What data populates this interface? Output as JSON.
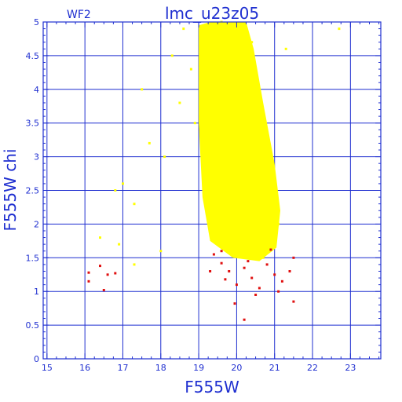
{
  "chart_data": {
    "type": "scatter",
    "title": "lmc_u23z05",
    "subtitle": "WF2",
    "xlabel": "F555W",
    "ylabel": "F555W  chi",
    "xlim": [
      14.9,
      23.8
    ],
    "ylim": [
      0,
      5
    ],
    "xticks": [
      15,
      16,
      17,
      18,
      19,
      20,
      21,
      22,
      23
    ],
    "yticks": [
      0,
      0.5,
      1,
      1.5,
      2,
      2.5,
      3,
      3.5,
      4,
      4.5,
      5
    ],
    "xtick_labels": [
      "15",
      "16",
      "17",
      "18",
      "19",
      "20",
      "21",
      "22",
      "23"
    ],
    "ytick_labels": [
      "0",
      "0.5",
      "1",
      "1.5",
      "2",
      "2.5",
      "3",
      "3.5",
      "4",
      "4.5",
      "5"
    ],
    "grid": true,
    "series": [
      {
        "color": "#ffff00",
        "points": [
          [
            19.05,
            4.8
          ],
          [
            19.3,
            4.95
          ],
          [
            19.6,
            5.0
          ],
          [
            20.1,
            4.9
          ],
          [
            20.4,
            4.7
          ],
          [
            20.0,
            4.0
          ],
          [
            20.5,
            3.8
          ],
          [
            20.8,
            3.2
          ],
          [
            19.2,
            3.5
          ],
          [
            19.4,
            3.0
          ],
          [
            19.6,
            2.5
          ],
          [
            20.9,
            2.5
          ],
          [
            21.1,
            2.0
          ],
          [
            19.5,
            2.0
          ],
          [
            20.0,
            1.6
          ],
          [
            20.7,
            1.5
          ],
          [
            18.6,
            4.9
          ],
          [
            18.8,
            4.3
          ],
          [
            18.5,
            3.8
          ],
          [
            18.9,
            3.5
          ],
          [
            17.5,
            4.0
          ],
          [
            17.7,
            3.2
          ],
          [
            18.1,
            3.0
          ],
          [
            17.0,
            2.6
          ],
          [
            17.3,
            2.3
          ],
          [
            16.8,
            2.5
          ],
          [
            16.4,
            1.8
          ],
          [
            16.9,
            1.7
          ],
          [
            18.0,
            1.6
          ],
          [
            17.3,
            1.4
          ],
          [
            22.7,
            4.9
          ],
          [
            21.3,
            4.6
          ],
          [
            18.3,
            4.5
          ],
          [
            19.9,
            4.5
          ],
          [
            20.3,
            2.9
          ]
        ]
      },
      {
        "color": "#e01010",
        "points": [
          [
            16.1,
            1.28
          ],
          [
            16.1,
            1.15
          ],
          [
            16.4,
            1.38
          ],
          [
            16.6,
            1.25
          ],
          [
            16.5,
            1.02
          ],
          [
            16.8,
            1.27
          ],
          [
            19.4,
            1.55
          ],
          [
            19.6,
            1.42
          ],
          [
            19.8,
            1.3
          ],
          [
            20.0,
            1.1
          ],
          [
            20.2,
            1.35
          ],
          [
            20.4,
            1.2
          ],
          [
            20.6,
            1.05
          ],
          [
            20.8,
            1.4
          ],
          [
            21.0,
            1.25
          ],
          [
            21.2,
            1.15
          ],
          [
            21.4,
            1.3
          ],
          [
            21.5,
            0.85
          ],
          [
            20.2,
            0.58
          ],
          [
            19.95,
            0.82
          ],
          [
            20.5,
            0.95
          ],
          [
            19.7,
            1.18
          ],
          [
            20.9,
            1.62
          ],
          [
            21.5,
            1.5
          ],
          [
            20.3,
            1.45
          ],
          [
            19.3,
            1.3
          ],
          [
            19.6,
            1.6
          ],
          [
            21.1,
            1.0
          ]
        ]
      }
    ]
  }
}
